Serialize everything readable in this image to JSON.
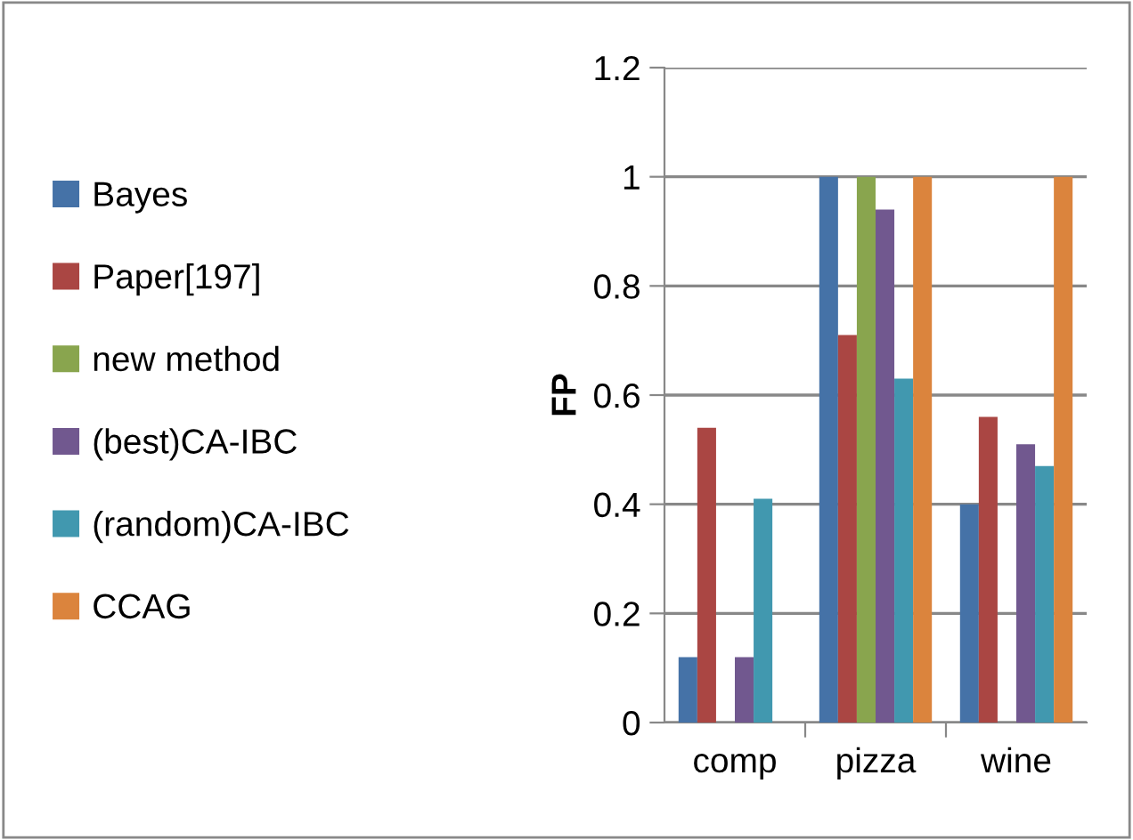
{
  "chart_data": {
    "type": "bar",
    "ylabel": "FP",
    "categories": [
      "comp",
      "pizza",
      "wine"
    ],
    "series": [
      {
        "name": "Bayes",
        "color": "#4572a7",
        "values": [
          0.12,
          1,
          0.4
        ]
      },
      {
        "name": "Paper[197]",
        "color": "#aa4643",
        "values": [
          0.54,
          0.71,
          0.56
        ]
      },
      {
        "name": "new method",
        "color": "#89a54e",
        "values": [
          0,
          1,
          0
        ]
      },
      {
        "name": "(best)CA-IBC",
        "color": "#71588f",
        "values": [
          0.12,
          0.94,
          0.51
        ]
      },
      {
        "name": "(random)CA-IBC",
        "color": "#4198af",
        "values": [
          0.41,
          0.63,
          0.47
        ]
      },
      {
        "name": "CCAG",
        "color": "#db843d",
        "values": [
          0,
          1,
          1
        ]
      }
    ],
    "ylim": [
      0,
      1.2
    ],
    "yticks": [
      0,
      {
        "value": 0.2,
        "label": "0.2"
      },
      {
        "value": 0.4,
        "label": "0.4"
      },
      {
        "value": 0.6,
        "label": "0.6"
      },
      {
        "value": 0.8,
        "label": "0.8"
      },
      1,
      {
        "value": 1.2,
        "label": "1.2"
      }
    ],
    "grid": "y",
    "legend": "left"
  }
}
